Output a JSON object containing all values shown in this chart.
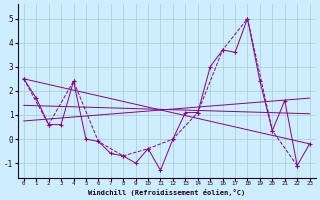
{
  "xlabel": "Windchill (Refroidissement éolien,°C)",
  "bg_color": "#cceeff",
  "grid_color": "#aacccc",
  "line_color": "#880088",
  "xlim": [
    -0.5,
    23.5
  ],
  "ylim": [
    -1.6,
    5.6
  ],
  "xticks": [
    0,
    1,
    2,
    3,
    4,
    5,
    6,
    7,
    8,
    9,
    10,
    11,
    12,
    13,
    14,
    15,
    16,
    17,
    18,
    19,
    20,
    21,
    22,
    23
  ],
  "yticks": [
    -1,
    0,
    1,
    2,
    3,
    4,
    5
  ],
  "main_x": [
    0,
    1,
    2,
    3,
    4,
    5,
    6,
    7,
    8,
    9,
    10,
    11,
    12,
    13,
    14,
    15,
    16,
    17,
    18,
    19,
    20,
    21,
    22,
    23
  ],
  "main_y": [
    2.5,
    1.7,
    0.6,
    0.6,
    2.4,
    0.0,
    -0.1,
    -0.6,
    -0.7,
    -1.0,
    -0.4,
    -1.3,
    0.0,
    1.1,
    1.1,
    3.0,
    3.7,
    3.6,
    5.0,
    2.4,
    0.35,
    1.6,
    -1.1,
    -0.2
  ],
  "dash_x": [
    0,
    2,
    4,
    6,
    8,
    10,
    12,
    14,
    16,
    18,
    20,
    22
  ],
  "dash_y": [
    2.5,
    0.6,
    2.4,
    -0.1,
    -0.7,
    -0.4,
    0.0,
    1.1,
    3.7,
    5.0,
    0.35,
    -1.1
  ],
  "trend1_x": [
    0,
    23
  ],
  "trend1_y": [
    2.5,
    -0.2
  ],
  "trend2_x": [
    0,
    23
  ],
  "trend2_y": [
    0.75,
    1.7
  ],
  "trend3_x": [
    0,
    23
  ],
  "trend3_y": [
    1.4,
    1.05
  ]
}
